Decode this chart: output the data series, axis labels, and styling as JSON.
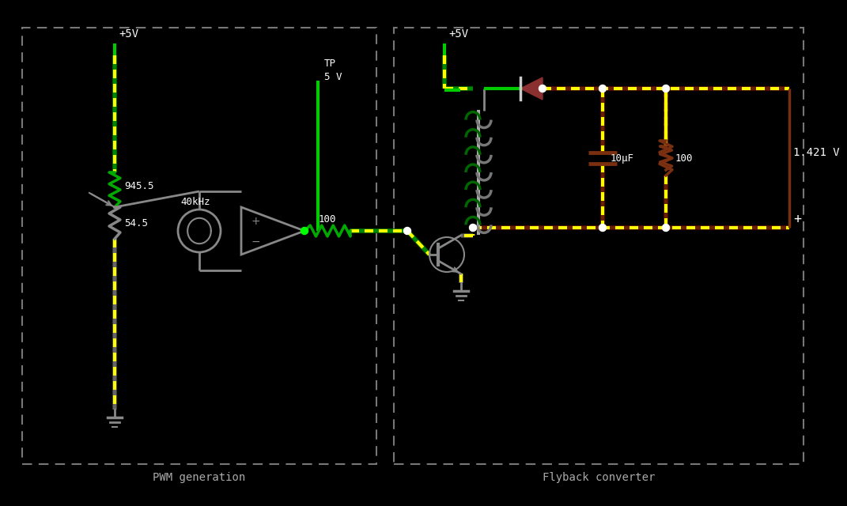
{
  "bg_color": "#000000",
  "title_pwm": "PWM generation",
  "title_flyback": "Flyback converter",
  "label_5v_left": "+5V",
  "label_5v_right": "+5V",
  "label_tp": "TP\n5 V",
  "label_945": "945.5",
  "label_545": "54.5",
  "label_40khz": "40kHz",
  "label_100_left": "100",
  "label_100_right": "100",
  "label_10uf": "10μF",
  "label_voltage": "1.421 V",
  "label_plus": "+",
  "green_wire": "#00bb00",
  "green_bright": "#00ee00",
  "yellow": "#ffff00",
  "gray_wire": "#888888",
  "dark_gray": "#555555",
  "brown_wire": "#7a3010",
  "brown_dark": "#5a1a00",
  "green_coil": "#007700",
  "gray_coil": "#777777",
  "white": "#ffffff",
  "diode_color": "#7a3030",
  "text_white": "#ffffff",
  "text_gray": "#aaaaaa"
}
